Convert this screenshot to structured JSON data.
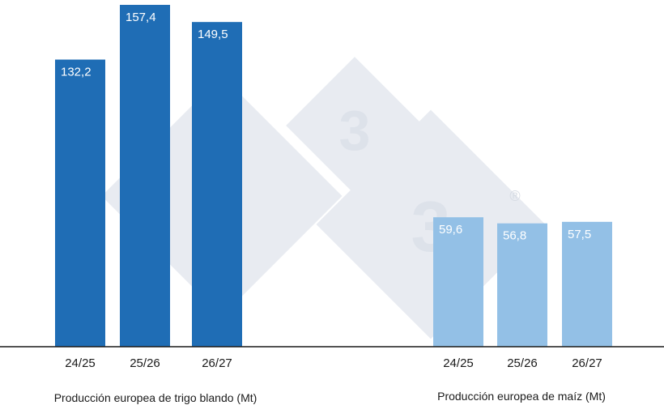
{
  "chart_data": [
    {
      "type": "bar",
      "categories": [
        "24/25",
        "25/26",
        "26/27"
      ],
      "values": [
        132.2,
        157.4,
        149.5
      ],
      "value_labels": [
        "132,2",
        "157,4",
        "149,5"
      ],
      "xlabel": "Producción europea de trigo blando (Mt)",
      "ylabel": "",
      "ylim": [
        0,
        157.4
      ],
      "grid": false,
      "color": "#1f6db5"
    },
    {
      "type": "bar",
      "categories": [
        "24/25",
        "25/26",
        "26/27"
      ],
      "values": [
        59.6,
        56.8,
        57.5
      ],
      "value_labels": [
        "59,6",
        "56,8",
        "57,5"
      ],
      "xlabel": "Producción europea de maíz (Mt)",
      "ylabel": "",
      "ylim": [
        0,
        157.4
      ],
      "grid": false,
      "color": "#93c0e6"
    }
  ],
  "watermark": {
    "glyph": "3",
    "mark": "®",
    "color": "#e3e7ee"
  }
}
